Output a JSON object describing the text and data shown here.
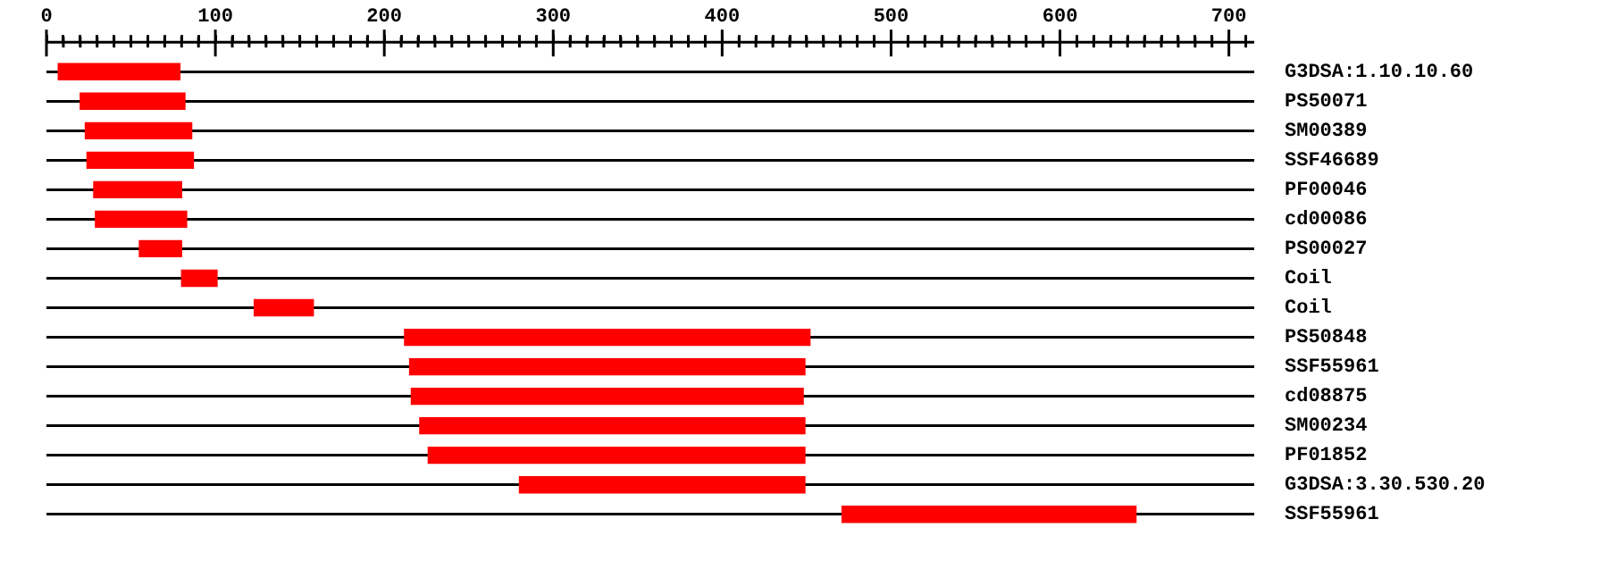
{
  "chart_data": {
    "type": "bar",
    "orientation": "horizontal",
    "color": "#ff0000",
    "grid": "y",
    "legend": false,
    "categories": [
      "G3DSA:1.10.10.60",
      "PS50071",
      "SM00389",
      "SSF46689",
      "PF00046",
      "cd00086",
      "PS00027",
      "Coil",
      "Coil",
      "PS50848",
      "SSF55961",
      "cd08875",
      "SM00234",
      "PF01852",
      "G3DSA:3.30.530.20",
      "SSF55961"
    ],
    "base": [
      7,
      20,
      23,
      24,
      28,
      29,
      55,
      80,
      123,
      212,
      215,
      216,
      221,
      226,
      280,
      471
    ],
    "values": [
      72,
      62,
      63,
      63,
      52,
      54,
      25,
      21,
      35,
      240,
      234,
      232,
      228,
      223,
      169,
      174
    ],
    "xlim": [
      0,
      715
    ],
    "xticks": [
      0,
      {
        "value": 10,
        "label": null
      },
      {
        "value": 20,
        "label": null
      },
      {
        "value": 30,
        "label": null
      },
      {
        "value": 40,
        "label": null
      },
      {
        "value": 50,
        "label": null
      },
      {
        "value": 60,
        "label": null
      },
      {
        "value": 70,
        "label": null
      },
      {
        "value": 80,
        "label": null
      },
      {
        "value": 90,
        "label": null
      },
      100,
      {
        "value": 110,
        "label": null
      },
      {
        "value": 120,
        "label": null
      },
      {
        "value": 130,
        "label": null
      },
      {
        "value": 140,
        "label": null
      },
      {
        "value": 150,
        "label": null
      },
      {
        "value": 160,
        "label": null
      },
      {
        "value": 170,
        "label": null
      },
      {
        "value": 180,
        "label": null
      },
      {
        "value": 190,
        "label": null
      },
      200,
      {
        "value": 210,
        "label": null
      },
      {
        "value": 220,
        "label": null
      },
      {
        "value": 230,
        "label": null
      },
      {
        "value": 240,
        "label": null
      },
      {
        "value": 250,
        "label": null
      },
      {
        "value": 260,
        "label": null
      },
      {
        "value": 270,
        "label": null
      },
      {
        "value": 280,
        "label": null
      },
      {
        "value": 290,
        "label": null
      },
      300,
      {
        "value": 310,
        "label": null
      },
      {
        "value": 320,
        "label": null
      },
      {
        "value": 330,
        "label": null
      },
      {
        "value": 340,
        "label": null
      },
      {
        "value": 350,
        "label": null
      },
      {
        "value": 360,
        "label": null
      },
      {
        "value": 370,
        "label": null
      },
      {
        "value": 380,
        "label": null
      },
      {
        "value": 390,
        "label": null
      },
      400,
      {
        "value": 410,
        "label": null
      },
      {
        "value": 420,
        "label": null
      },
      {
        "value": 430,
        "label": null
      },
      {
        "value": 440,
        "label": null
      },
      {
        "value": 450,
        "label": null
      },
      {
        "value": 460,
        "label": null
      },
      {
        "value": 470,
        "label": null
      },
      {
        "value": 480,
        "label": null
      },
      {
        "value": 490,
        "label": null
      },
      500,
      {
        "value": 510,
        "label": null
      },
      {
        "value": 520,
        "label": null
      },
      {
        "value": 530,
        "label": null
      },
      {
        "value": 540,
        "label": null
      },
      {
        "value": 550,
        "label": null
      },
      {
        "value": 560,
        "label": null
      },
      {
        "value": 570,
        "label": null
      },
      {
        "value": 580,
        "label": null
      },
      {
        "value": 590,
        "label": null
      },
      600,
      {
        "value": 610,
        "label": null
      },
      {
        "value": 620,
        "label": null
      },
      {
        "value": 630,
        "label": null
      },
      {
        "value": 640,
        "label": null
      },
      {
        "value": 650,
        "label": null
      },
      {
        "value": 660,
        "label": null
      },
      {
        "value": 670,
        "label": null
      },
      {
        "value": 680,
        "label": null
      },
      {
        "value": 690,
        "label": null
      },
      700,
      {
        "value": 710,
        "label": null
      }
    ]
  }
}
